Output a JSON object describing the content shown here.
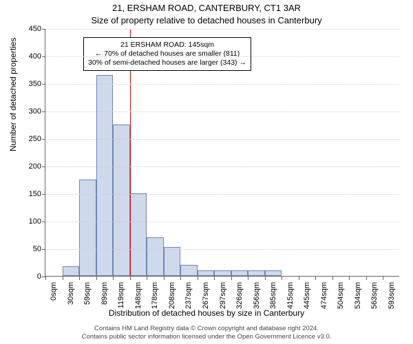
{
  "title_line1": "21, ERSHAM ROAD, CANTERBURY, CT1 3AR",
  "title_line2": "Size of property relative to detached houses in Canterbury",
  "ylabel": "Number of detached properties",
  "xlabel": "Distribution of detached houses by size in Canterbury",
  "footer_line1": "Contains HM Land Registry data © Crown copyright and database right 2024.",
  "footer_line2": "Contains public sector information licensed under the Open Government Licence v3.0.",
  "chart": {
    "type": "histogram",
    "ylim": [
      0,
      450
    ],
    "ytick_step": 50,
    "bar_fill": "#cfd9ec",
    "bar_stroke": "#6e84b5",
    "grid_color": "#cccccc",
    "background": "#ffffff",
    "refline_color": "#d40000",
    "refline_x_index": 5,
    "categories": [
      "0sqm",
      "30sqm",
      "59sqm",
      "89sqm",
      "119sqm",
      "148sqm",
      "178sqm",
      "208sqm",
      "237sqm",
      "267sqm",
      "297sqm",
      "326sqm",
      "356sqm",
      "385sqm",
      "415sqm",
      "445sqm",
      "474sqm",
      "504sqm",
      "534sqm",
      "563sqm",
      "593sqm"
    ],
    "values": [
      0,
      18,
      175,
      365,
      275,
      150,
      70,
      52,
      20,
      10,
      10,
      10,
      10,
      10,
      0,
      0,
      0,
      0,
      0,
      0,
      0
    ]
  },
  "annotation": {
    "line1": "21 ERSHAM ROAD: 145sqm",
    "line2": "← 70% of detached houses are smaller (811)",
    "line3": "30% of semi-detached houses are larger (343) →"
  }
}
